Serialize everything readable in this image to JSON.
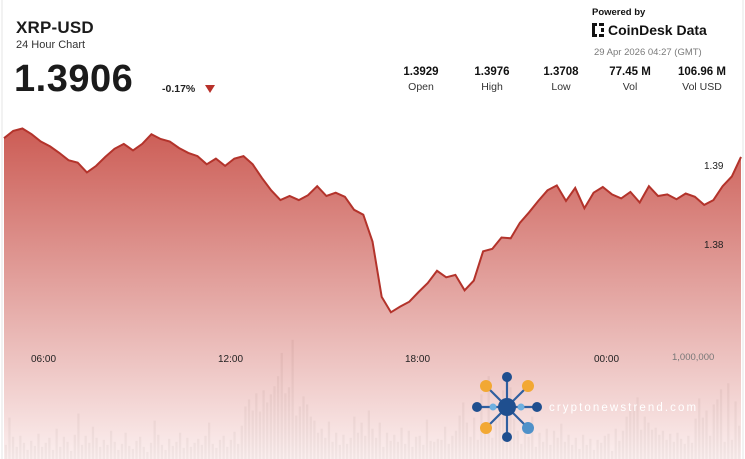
{
  "header": {
    "pair": "XRP-USD",
    "subtitle": "24 Hour Chart",
    "price": "1.3906",
    "change": "-0.17%",
    "change_direction": "down"
  },
  "stats": [
    {
      "value": "1.3929",
      "label": "Open"
    },
    {
      "value": "1.3976",
      "label": "High"
    },
    {
      "value": "1.3708",
      "label": "Low"
    },
    {
      "value": "77.45 M",
      "label": "Vol"
    },
    {
      "value": "106.96 M",
      "label": "Vol USD"
    }
  ],
  "branding": {
    "powered_by": "Powered by",
    "name": "CoinDesk Data",
    "timestamp": "29 Apr 2026 04:27 (GMT)",
    "icon": "coindesk-logo-icon"
  },
  "watermark": {
    "text": "cryptonewstrend.com",
    "icon": "network-nodes-logo-icon"
  },
  "colors": {
    "price_line": "#b3332b",
    "area_top": "#c85048",
    "area_bottom": "#fbeeee",
    "volume_bar": "#7c7c74",
    "down": "#b8302a"
  },
  "chart_data": {
    "type": "area",
    "title": "XRP-USD",
    "subtitle": "24 Hour Chart",
    "x_ticks": [
      "06:00",
      "12:00",
      "18:00",
      "00:00"
    ],
    "y_ticks": [
      "1.39",
      "1.38"
    ],
    "ylim": [
      1.3708,
      1.3976
    ],
    "volume_tick": "1,000,000",
    "price_series": {
      "name": "XRP-USD",
      "x_hours": [
        0,
        0.3,
        0.6,
        0.9,
        1.2,
        1.5,
        1.8,
        2.1,
        2.4,
        2.7,
        3.0,
        3.3,
        3.6,
        3.9,
        4.2,
        4.5,
        4.8,
        5.1,
        5.4,
        5.7,
        6.0,
        6.3,
        6.6,
        6.9,
        7.2,
        7.5,
        7.8,
        8.1,
        8.4,
        8.7,
        9.0,
        9.3,
        9.6,
        9.9,
        10.2,
        10.5,
        10.8,
        11.1,
        11.4,
        11.7,
        12.0,
        12.3,
        12.6,
        12.9,
        13.2,
        13.5,
        13.8,
        14.1,
        14.4,
        14.7,
        15.0,
        15.3,
        15.6,
        15.9,
        16.2,
        16.5,
        16.8,
        17.1,
        17.4,
        17.7,
        18.0,
        18.3,
        18.6,
        18.9,
        19.2,
        19.5,
        19.8,
        20.1,
        20.4,
        20.7,
        21.0,
        21.3,
        21.6,
        21.9,
        22.2,
        22.5,
        22.8,
        23.1,
        23.4,
        23.7,
        24.0
      ],
      "values": [
        1.3929,
        1.3938,
        1.3941,
        1.3934,
        1.3925,
        1.3919,
        1.3911,
        1.3902,
        1.3899,
        1.3887,
        1.3895,
        1.3906,
        1.3916,
        1.3922,
        1.3914,
        1.3922,
        1.3934,
        1.3928,
        1.3925,
        1.3917,
        1.3911,
        1.3907,
        1.3897,
        1.3904,
        1.3895,
        1.3904,
        1.3907,
        1.3897,
        1.388,
        1.3865,
        1.3853,
        1.3858,
        1.3853,
        1.3859,
        1.387,
        1.3858,
        1.3862,
        1.3857,
        1.3841,
        1.3835,
        1.3802,
        1.3734,
        1.3715,
        1.3722,
        1.3728,
        1.374,
        1.3751,
        1.3766,
        1.3758,
        1.3761,
        1.3742,
        1.3754,
        1.379,
        1.3793,
        1.3807,
        1.3806,
        1.3825,
        1.3838,
        1.3852,
        1.3865,
        1.3871,
        1.3852,
        1.3868,
        1.3843,
        1.3862,
        1.3869,
        1.386,
        1.3855,
        1.3863,
        1.385,
        1.387,
        1.3858,
        1.386,
        1.3854,
        1.3861,
        1.3857,
        1.3847,
        1.3853,
        1.387,
        1.3882,
        1.3906
      ]
    },
    "volume_series": {
      "name": "Vol",
      "values": [
        140000,
        410000,
        220000,
        120000,
        230000,
        160000,
        90000,
        180000,
        130000,
        250000,
        120000,
        160000,
        210000,
        90000,
        300000,
        120000,
        220000,
        170000,
        80000,
        240000,
        450000,
        140000,
        230000,
        160000,
        320000,
        210000,
        120000,
        190000,
        140000,
        280000,
        170000,
        90000,
        150000,
        260000,
        130000,
        100000,
        180000,
        220000,
        120000,
        70000,
        160000,
        380000,
        240000,
        140000,
        90000,
        200000,
        130000,
        170000,
        260000,
        110000,
        210000,
        120000,
        160000,
        200000,
        140000,
        230000,
        360000,
        150000,
        110000,
        190000,
        230000,
        120000,
        190000,
        270000,
        150000,
        330000,
        520000,
        590000,
        480000,
        650000,
        470000,
        680000,
        560000,
        640000,
        720000,
        820000,
        1050000,
        650000,
        710000,
        1180000,
        430000,
        520000,
        620000,
        540000,
        420000,
        380000,
        260000,
        300000,
        210000,
        370000,
        170000,
        260000,
        140000,
        240000,
        150000,
        210000,
        420000,
        260000,
        360000,
        230000,
        480000,
        300000,
        210000,
        360000,
        120000,
        260000,
        180000,
        240000,
        170000,
        310000,
        150000,
        280000,
        120000,
        220000,
        230000,
        140000,
        390000,
        180000,
        170000,
        200000,
        190000,
        320000,
        150000,
        230000,
        280000,
        430000,
        560000,
        360000,
        220000,
        410000,
        190000,
        640000,
        300000,
        820000,
        210000,
        380000,
        430000,
        680000,
        560000,
        710000,
        400000,
        280000,
        150000,
        340000,
        220000,
        420000,
        120000,
        260000,
        170000,
        300000,
        140000,
        280000,
        210000,
        350000,
        170000,
        240000,
        140000,
        210000,
        100000,
        240000,
        140000,
        200000,
        90000,
        190000,
        160000,
        230000,
        250000,
        80000,
        300000,
        180000,
        280000,
        420000,
        480000,
        520000,
        610000,
        290000,
        420000,
        360000,
        290000,
        310000,
        240000,
        280000,
        190000,
        250000,
        170000,
        260000,
        200000,
        150000,
        230000,
        160000,
        400000,
        600000,
        410000,
        480000,
        230000,
        540000,
        590000,
        690000,
        170000,
        750000,
        190000,
        570000,
        330000
      ]
    }
  }
}
